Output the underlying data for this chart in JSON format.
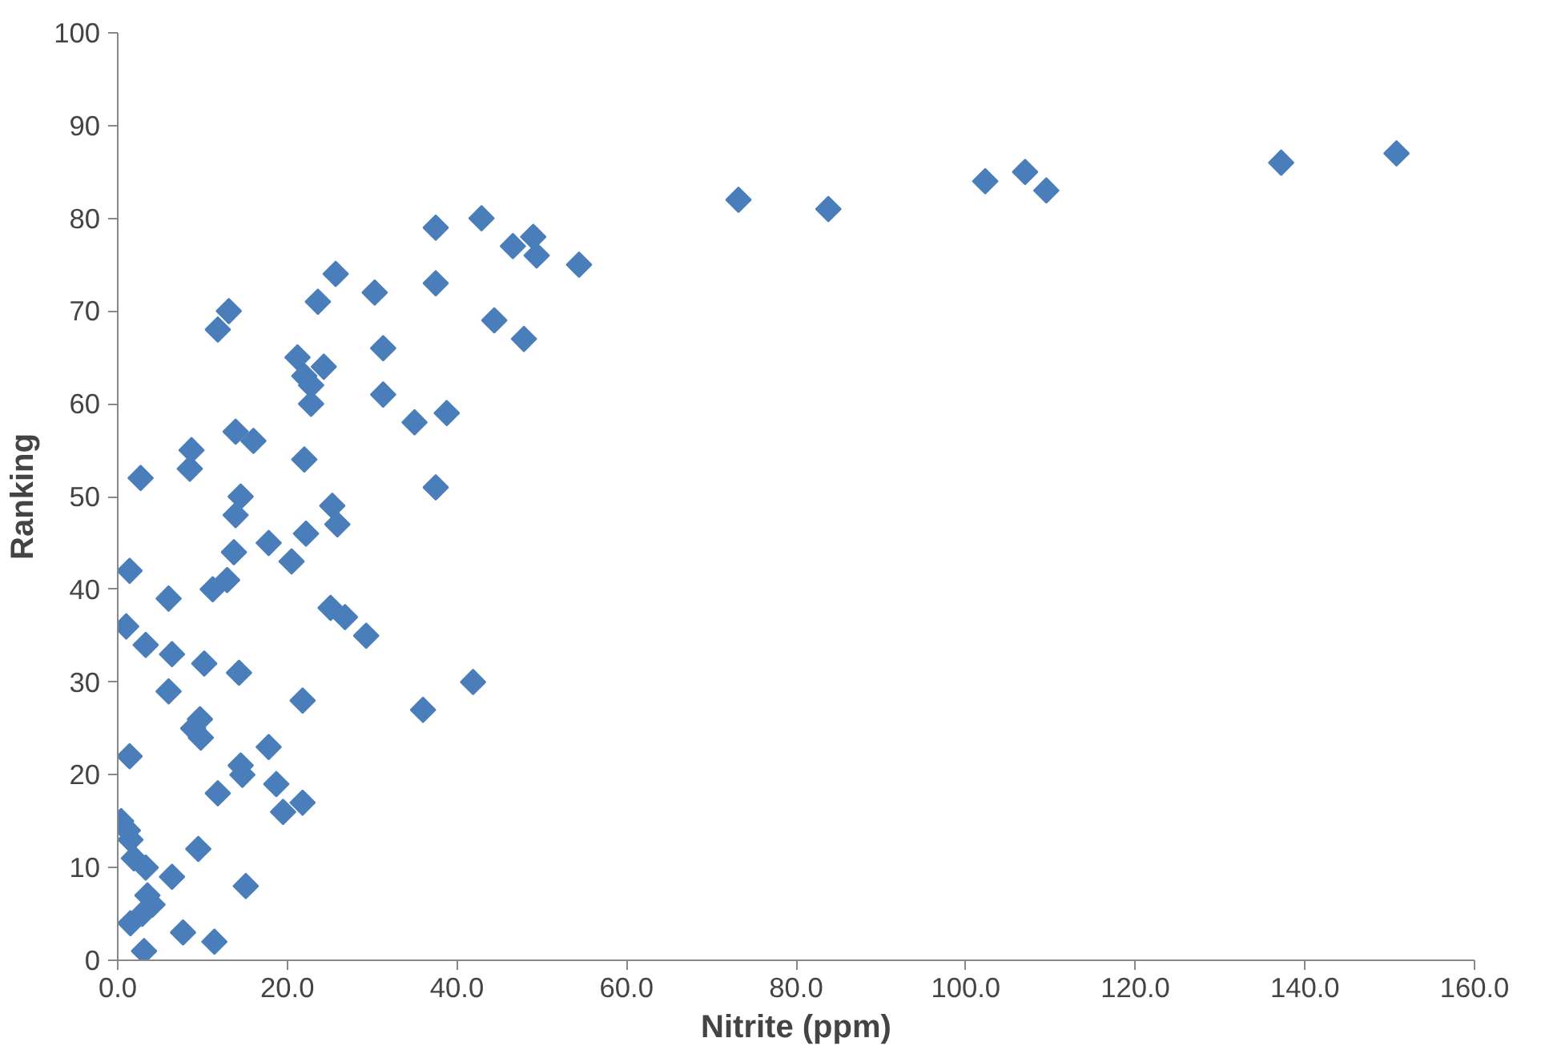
{
  "chart_data": {
    "type": "scatter",
    "xlabel": "Nitrite (ppm)",
    "ylabel": "Ranking",
    "marker": "diamond",
    "grid": false,
    "xlim": [
      0,
      160
    ],
    "xticks": [
      {
        "value": 0,
        "label": "0.0"
      },
      {
        "value": 20,
        "label": "20.0"
      },
      {
        "value": 40,
        "label": "40.0"
      },
      {
        "value": 60,
        "label": "60.0"
      },
      {
        "value": 80,
        "label": "80.0"
      },
      {
        "value": 100,
        "label": "100.0"
      },
      {
        "value": 120,
        "label": "120.0"
      },
      {
        "value": 140,
        "label": "140.0"
      },
      {
        "value": 160,
        "label": "160.0"
      }
    ],
    "ylim": [
      0,
      100
    ],
    "yticks": [
      0,
      10,
      20,
      30,
      40,
      50,
      60,
      70,
      80,
      90,
      100
    ],
    "series": [
      {
        "color": "#4a7ebb",
        "x": [
          150.8,
          137.2,
          107,
          109.5,
          102.3,
          73.2,
          83.8,
          42.9,
          37.5,
          49,
          46.6,
          49.4,
          54.4,
          25.7,
          37.5,
          30.3,
          23.6,
          13.1,
          44.4,
          11.8,
          47.9,
          31.3,
          21.2,
          24.3,
          22,
          22.8,
          31.3,
          22.8,
          38.8,
          35,
          13.9,
          16,
          8.7,
          22,
          8.5,
          2.7,
          37.5,
          14.5,
          25.3,
          13.9,
          25.9,
          22.2,
          17.8,
          13.7,
          20.5,
          1.4,
          12.9,
          11.2,
          6,
          25.1,
          26.8,
          1,
          29.3,
          3.3,
          6.4,
          10.2,
          14.3,
          41.9,
          6,
          21.8,
          36,
          9.7,
          8.9,
          9.8,
          17.8,
          1.4,
          14.5,
          14.7,
          18.7,
          11.8,
          21.8,
          19.5,
          0.4,
          1.2,
          1.5,
          9.5,
          1.9,
          3.3,
          6.4,
          15.1,
          3.5,
          4.1,
          2.9,
          1.5,
          7.7,
          11.4,
          3.1
        ],
        "values": [
          87,
          86,
          85,
          83,
          84,
          82,
          81,
          80,
          79,
          78,
          77,
          76,
          75,
          74,
          73,
          72,
          71,
          70,
          69,
          68,
          67,
          66,
          65,
          64,
          63,
          62,
          61,
          60,
          59,
          58,
          57,
          56,
          55,
          54,
          53,
          52,
          51,
          50,
          49,
          48,
          47,
          46,
          45,
          44,
          43,
          42,
          41,
          40,
          39,
          38,
          37,
          36,
          35,
          34,
          33,
          32,
          31,
          30,
          29,
          28,
          27,
          26,
          25,
          24,
          23,
          22,
          21,
          20,
          19,
          18,
          17,
          16,
          15,
          14,
          13,
          12,
          11,
          10,
          9,
          8,
          7,
          6,
          5,
          4,
          3,
          2,
          1
        ]
      }
    ]
  }
}
